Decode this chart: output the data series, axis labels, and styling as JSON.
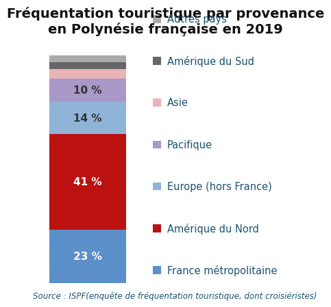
{
  "title": "Fréquentation touristique par provenance\nen Polynésie française en 2019",
  "source_text": "Source : ISPF(enquête de fréquentation touristique, dont croisiéristes)",
  "categories": [
    "France métropolitaine",
    "Amérique du Nord",
    "Europe (hors France)",
    "Pacifique",
    "Asie",
    "Amérique du Sud",
    "Autres pays"
  ],
  "values": [
    23,
    41,
    14,
    10,
    4,
    3,
    3
  ],
  "colors": [
    "#5b8fca",
    "#bb1111",
    "#8fb4d8",
    "#a899c8",
    "#e8b4b8",
    "#666666",
    "#aaaaaa"
  ],
  "labels_shown": [
    "23 %",
    "41 %",
    "14 %",
    "10 %",
    "",
    "",
    ""
  ],
  "label_colors": [
    "white",
    "white",
    "#333333",
    "#333333",
    "",
    "",
    ""
  ],
  "background_color": "#ffffff",
  "title_fontsize": 14,
  "label_fontsize": 11,
  "legend_fontsize": 10.5,
  "source_fontsize": 8.5
}
